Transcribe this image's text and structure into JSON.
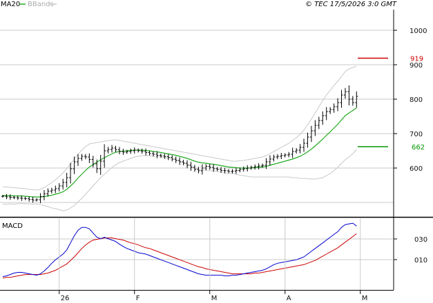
{
  "legend": {
    "ma_label": "MA20",
    "ma_color": "#22aa22",
    "bb_label": "BBands",
    "bb_color": "#c8c8c8"
  },
  "header": {
    "copyright": "© TEC 17/5/2026 3:0 GMT"
  },
  "chart_data": [
    {
      "type": "candlestick",
      "title": "",
      "ylim": [
        460,
        1060
      ],
      "yticks": [
        600,
        700,
        800,
        900,
        1000
      ],
      "grid": true,
      "x_labels": [
        "26",
        "F",
        "M",
        "A",
        "M"
      ],
      "x_label_index": [
        15,
        35,
        55,
        75,
        95
      ],
      "markers": [
        {
          "label": "919",
          "value": 919,
          "color": "#cc0000"
        },
        {
          "label": "662",
          "value": 662,
          "color": "#009900"
        }
      ],
      "close": [
        518,
        516,
        515,
        514,
        513,
        512,
        511,
        509,
        507,
        508,
        517,
        525,
        533,
        536,
        540,
        548,
        558,
        572,
        598,
        618,
        628,
        634,
        632,
        625,
        612,
        598,
        620,
        650,
        654,
        658,
        653,
        648,
        646,
        648,
        650,
        652,
        650,
        648,
        645,
        642,
        640,
        637,
        635,
        633,
        631,
        626,
        622,
        618,
        614,
        608,
        602,
        596,
        592,
        600,
        605,
        602,
        598,
        596,
        593,
        592,
        590,
        591,
        593,
        596,
        598,
        600,
        602,
        604,
        606,
        608,
        618,
        626,
        632,
        634,
        636,
        638,
        640,
        648,
        652,
        660,
        672,
        690,
        708,
        724,
        738,
        752,
        764,
        770,
        778,
        790,
        812,
        822,
        800,
        790,
        808
      ],
      "ma20": [
        520,
        520,
        520,
        519,
        519,
        519,
        518,
        517,
        516,
        516,
        516,
        517,
        519,
        521,
        524,
        527,
        531,
        538,
        548,
        558,
        571,
        582,
        593,
        603,
        610,
        617,
        624,
        630,
        636,
        641,
        646,
        648,
        649,
        650,
        651,
        652,
        652,
        652,
        651,
        650,
        648,
        647,
        645,
        643,
        641,
        639,
        637,
        634,
        631,
        628,
        624,
        620,
        617,
        615,
        614,
        612,
        611,
        609,
        607,
        605,
        603,
        602,
        601,
        600,
        600,
        600,
        600,
        601,
        602,
        603,
        605,
        608,
        611,
        614,
        617,
        620,
        623,
        626,
        630,
        634,
        640,
        647,
        655,
        664,
        674,
        684,
        695,
        705,
        716,
        727,
        740,
        752,
        760,
        767,
        775
      ],
      "bb_upper": [
        545,
        545,
        544,
        543,
        542,
        541,
        540,
        538,
        537,
        536,
        538,
        543,
        550,
        558,
        566,
        575,
        586,
        598,
        612,
        625,
        640,
        652,
        662,
        670,
        672,
        674,
        676,
        678,
        680,
        681,
        682,
        680,
        678,
        676,
        674,
        672,
        670,
        668,
        666,
        664,
        662,
        660,
        658,
        656,
        654,
        652,
        650,
        648,
        646,
        644,
        642,
        640,
        638,
        636,
        634,
        632,
        630,
        628,
        626,
        624,
        622,
        620,
        620,
        621,
        622,
        624,
        626,
        628,
        630,
        632,
        636,
        642,
        648,
        654,
        660,
        666,
        672,
        680,
        688,
        698,
        710,
        725,
        742,
        760,
        778,
        796,
        812,
        826,
        840,
        852,
        866,
        880,
        888,
        892,
        896
      ],
      "bb_lower": [
        495,
        495,
        496,
        495,
        496,
        497,
        496,
        496,
        495,
        496,
        494,
        491,
        488,
        484,
        482,
        479,
        476,
        478,
        484,
        491,
        502,
        512,
        524,
        536,
        548,
        560,
        572,
        582,
        592,
        601,
        610,
        616,
        620,
        624,
        628,
        632,
        634,
        636,
        636,
        636,
        634,
        634,
        632,
        630,
        628,
        626,
        624,
        620,
        616,
        612,
        606,
        600,
        596,
        594,
        594,
        592,
        592,
        590,
        588,
        586,
        584,
        584,
        582,
        579,
        578,
        576,
        574,
        574,
        574,
        574,
        574,
        574,
        574,
        574,
        574,
        574,
        574,
        572,
        572,
        570,
        570,
        569,
        568,
        568,
        570,
        572,
        578,
        584,
        592,
        602,
        614,
        624,
        632,
        642,
        654
      ],
      "macd": [
        -10,
        -9,
        -7,
        -5,
        -4,
        -4,
        -5,
        -6,
        -7,
        -8,
        -6,
        -2,
        3,
        9,
        14,
        18,
        22,
        28,
        38,
        48,
        56,
        60,
        60,
        58,
        52,
        46,
        44,
        46,
        44,
        42,
        40,
        36,
        33,
        30,
        28,
        26,
        24,
        23,
        22,
        20,
        18,
        16,
        14,
        12,
        10,
        8,
        6,
        4,
        2,
        0,
        -2,
        -4,
        -6,
        -7,
        -8,
        -8,
        -8,
        -8,
        -8,
        -9,
        -9,
        -8,
        -8,
        -7,
        -6,
        -5,
        -4,
        -3,
        -2,
        -1,
        1,
        4,
        7,
        9,
        10,
        11,
        12,
        13,
        14,
        16,
        18,
        22,
        26,
        30,
        34,
        38,
        42,
        46,
        50,
        54,
        60,
        64,
        65,
        66,
        62
      ],
      "macd_signal": [
        -12,
        -11,
        -11,
        -10,
        -9,
        -8,
        -7,
        -7,
        -7,
        -7,
        -7,
        -6,
        -5,
        -3,
        -1,
        2,
        5,
        8,
        13,
        18,
        24,
        30,
        35,
        39,
        42,
        43,
        44,
        45,
        45,
        45,
        44,
        43,
        42,
        40,
        38,
        37,
        35,
        33,
        31,
        30,
        28,
        26,
        24,
        22,
        20,
        18,
        16,
        14,
        12,
        10,
        8,
        6,
        4,
        3,
        1,
        0,
        -1,
        -2,
        -3,
        -4,
        -5,
        -6,
        -6,
        -6,
        -6,
        -6,
        -6,
        -5,
        -5,
        -4,
        -3,
        -2,
        -1,
        0,
        1,
        2,
        3,
        4,
        5,
        6,
        7,
        9,
        11,
        13,
        16,
        19,
        22,
        25,
        28,
        31,
        35,
        39,
        43,
        47,
        51
      ],
      "macd_color": "#0000cc",
      "signal_color": "#cc0000"
    },
    {
      "type": "line",
      "title": "MACD",
      "yticks_labels": [
        "030",
        "010"
      ],
      "ylim": [
        -28,
        72
      ]
    }
  ]
}
